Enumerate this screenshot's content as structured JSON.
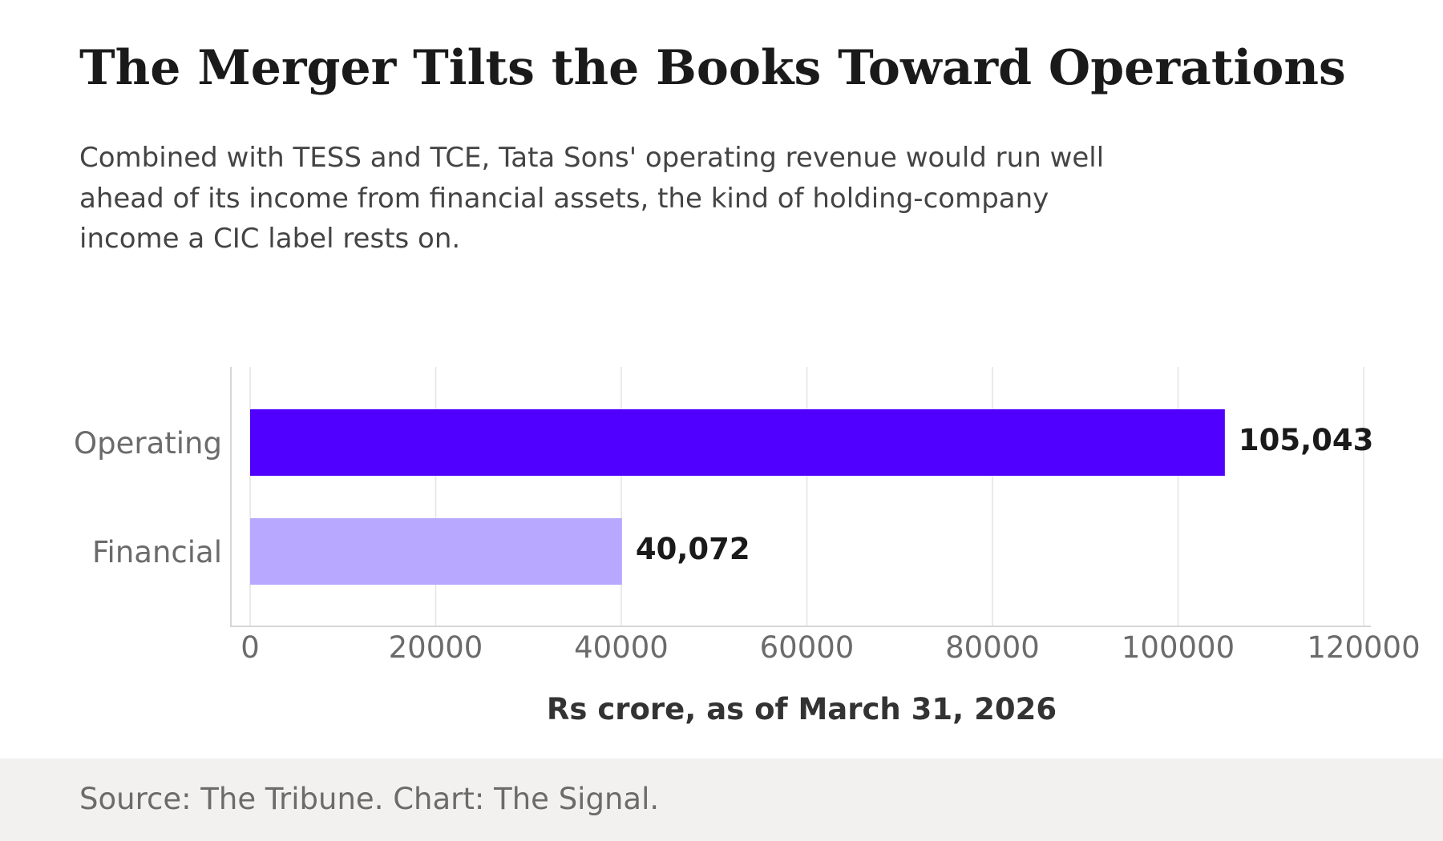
{
  "chart_data": {
    "type": "bar",
    "orientation": "horizontal",
    "title": "The Merger Tilts the Books Toward Operations",
    "subtitle": "Combined with TESS and TCE, Tata Sons' operating revenue would run well ahead of its income from financial assets, the kind of holding-company income a CIC label rests on.",
    "categories": [
      "Operating",
      "Financial"
    ],
    "values": [
      105043,
      40072
    ],
    "value_labels": [
      "105,043",
      "40,072"
    ],
    "colors": [
      "#5000ff",
      "#b8a8ff"
    ],
    "xlabel": "Rs crore, as of March 31, 2026",
    "ylabel": "",
    "xlim": [
      0,
      120000
    ],
    "xticks": [
      0,
      20000,
      40000,
      60000,
      80000,
      100000,
      120000
    ],
    "xtick_labels": [
      "0",
      "20000",
      "40000",
      "60000",
      "80000",
      "100000",
      "120000"
    ],
    "grid": "vertical",
    "legend": "none"
  },
  "footer": {
    "source": "Source: The Tribune. Chart: The Signal."
  }
}
